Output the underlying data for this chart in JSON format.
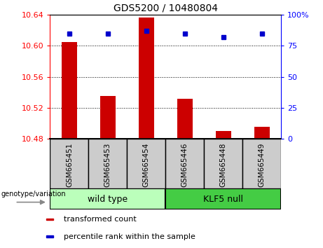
{
  "title": "GDS5200 / 10480804",
  "samples": [
    "GSM665451",
    "GSM665453",
    "GSM665454",
    "GSM665446",
    "GSM665448",
    "GSM665449"
  ],
  "bar_values": [
    10.605,
    10.535,
    10.637,
    10.532,
    10.49,
    10.496
  ],
  "percentile_values": [
    85,
    85,
    87,
    85,
    82,
    85
  ],
  "y_min": 10.48,
  "y_max": 10.64,
  "y_ticks": [
    10.48,
    10.52,
    10.56,
    10.6,
    10.64
  ],
  "right_y_ticks": [
    0,
    25,
    50,
    75,
    100
  ],
  "bar_color": "#cc0000",
  "scatter_color": "#0000cc",
  "groups": [
    {
      "label": "wild type",
      "indices": [
        0,
        1,
        2
      ],
      "color": "#bbffbb"
    },
    {
      "label": "KLF5 null",
      "indices": [
        3,
        4,
        5
      ],
      "color": "#44cc44"
    }
  ],
  "group_label_text": "genotype/variation",
  "legend_items": [
    {
      "color": "#cc0000",
      "label": "transformed count"
    },
    {
      "color": "#0000cc",
      "label": "percentile rank within the sample"
    }
  ],
  "sample_box_color": "#cccccc",
  "title_fontsize": 10,
  "tick_fontsize": 8,
  "sample_label_fontsize": 7.5,
  "legend_fontsize": 8,
  "group_fontsize": 9
}
